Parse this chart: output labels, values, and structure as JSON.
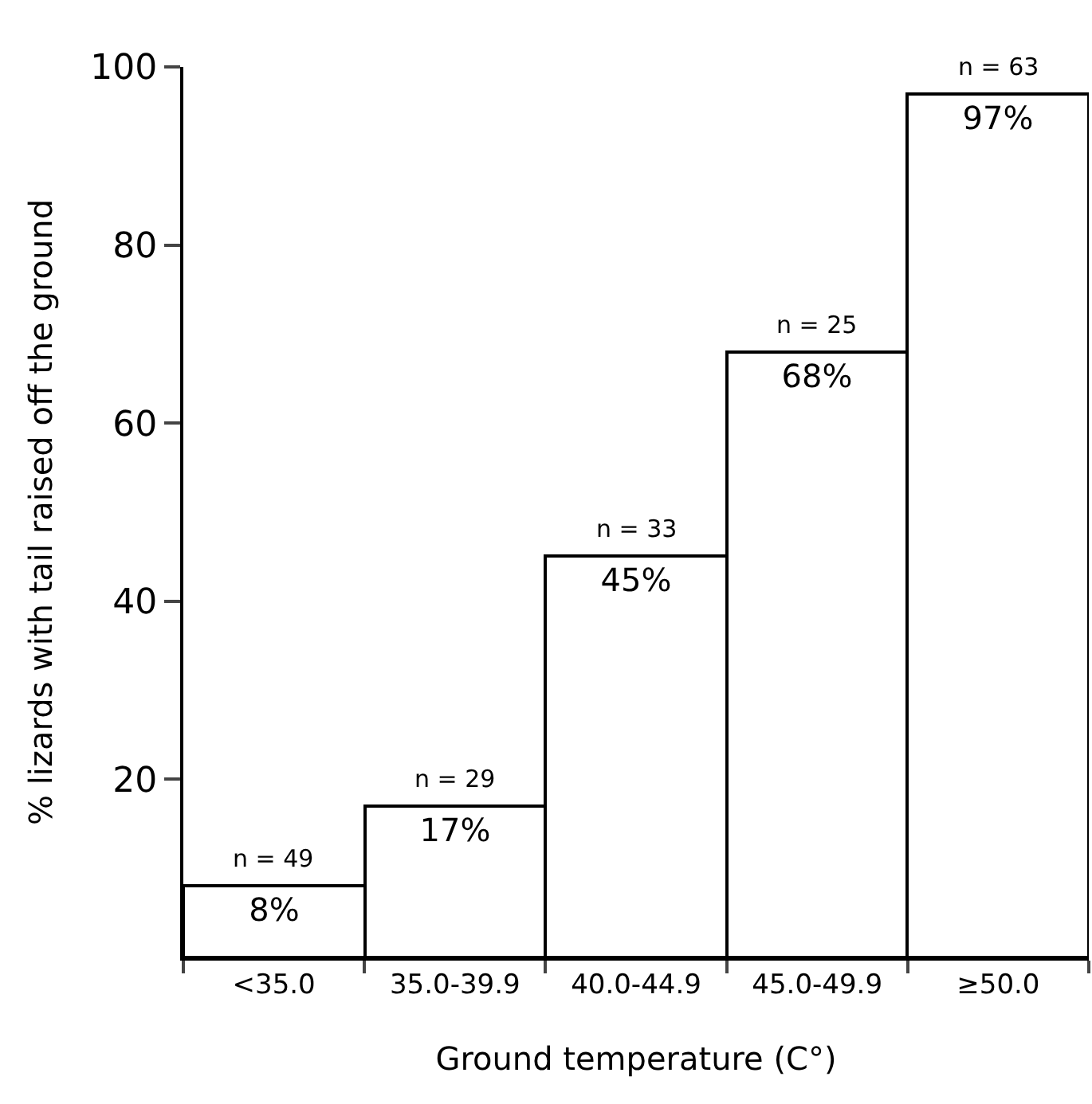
{
  "chart_data": {
    "type": "bar",
    "xlabel": "Ground temperature (C°)",
    "ylabel": "% lizards with tail raised off the ground",
    "categories": [
      "<35.0",
      "35.0-39.9",
      "40.0-44.9",
      "45.0-49.9",
      "≥50.0"
    ],
    "values": [
      8,
      17,
      45,
      68,
      97
    ],
    "color": "#ffffff",
    "value_labels": [
      "8%",
      "17%",
      "45%",
      "68%",
      "97%"
    ],
    "annotations": [
      {
        "text": "n = 49",
        "x": "<35.0",
        "y": 8
      },
      {
        "text": "n = 29",
        "x": "35.0-39.9",
        "y": 17
      },
      {
        "text": "n = 33",
        "x": "40.0-44.9",
        "y": 45
      },
      {
        "text": "n = 25",
        "x": "45.0-49.9",
        "y": 68
      },
      {
        "text": "n = 63",
        "x": "≥50.0",
        "y": 97
      }
    ],
    "ylim": [
      0,
      100
    ],
    "yticks": [
      20,
      40,
      60,
      80,
      100
    ]
  }
}
